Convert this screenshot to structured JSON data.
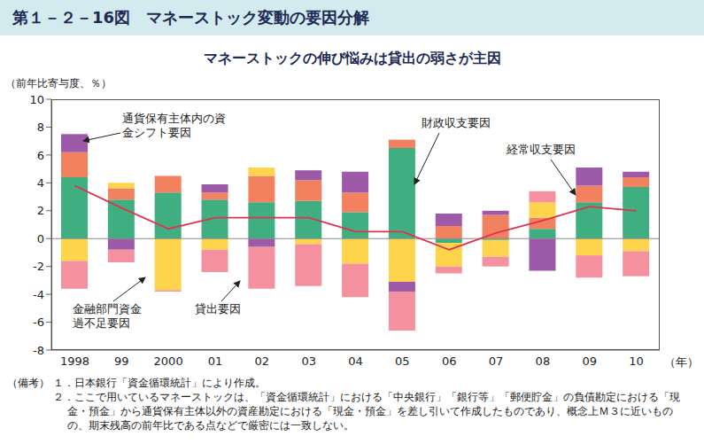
{
  "chart_data": {
    "type": "bar",
    "title": "第１－２－16図　マネーストック変動の要因分解",
    "subtitle": "マネーストックの伸び悩みは貸出の弱さが主因",
    "y_label": "（前年比寄与度、％）",
    "x_label": "（年）",
    "categories": [
      "1998",
      "99",
      "2000",
      "01",
      "02",
      "03",
      "04",
      "05",
      "06",
      "07",
      "08",
      "09",
      "10"
    ],
    "series": [
      {
        "name": "財政収支要因",
        "type": "bar",
        "color": "#3fae80",
        "values": [
          4.4,
          2.8,
          3.3,
          2.8,
          2.6,
          2.7,
          1.9,
          6.5,
          -0.3,
          -0.1,
          0.7,
          2.6,
          3.7
        ]
      },
      {
        "name": "経常収支要因",
        "type": "bar",
        "color": "#f2825f",
        "values": [
          1.8,
          0.8,
          1.2,
          0.5,
          1.9,
          1.5,
          1.4,
          0.6,
          0.9,
          1.7,
          0.8,
          1.2,
          0.7
        ]
      },
      {
        "name": "金融部門資金過不足要因",
        "type": "bar",
        "color": "#ffd44d",
        "values": [
          -1.6,
          0.4,
          -3.7,
          -0.8,
          0.6,
          -0.4,
          -1.8,
          -3.1,
          -1.7,
          -1.2,
          1.1,
          -1.2,
          -0.9
        ]
      },
      {
        "name": "通貨保有主体内の資金シフト要因",
        "type": "bar",
        "color": "#9c5aa8",
        "values": [
          1.3,
          -0.8,
          0,
          0.6,
          -0.6,
          0.7,
          1.5,
          -0.7,
          0.9,
          0.3,
          -2.3,
          1.3,
          0.4
        ]
      },
      {
        "name": "貸出要因",
        "type": "bar",
        "color": "#f5909f",
        "values": [
          -2.0,
          -0.9,
          -0.1,
          -1.6,
          -3.0,
          -3.0,
          -2.4,
          -2.8,
          -0.5,
          -0.7,
          0.8,
          -1.6,
          -1.8
        ]
      },
      {
        "type": "line",
        "color": "#e2314f",
        "values": [
          3.8,
          2.2,
          0.7,
          1.5,
          1.5,
          1.5,
          0.5,
          0.5,
          -0.8,
          0.4,
          1.3,
          2.3,
          2.0
        ]
      }
    ],
    "ylim": [
      -8,
      10
    ],
    "yticks": [
      -8,
      -6,
      -4,
      -2,
      0,
      2,
      4,
      6,
      8,
      10
    ],
    "stacked": true,
    "grid": false,
    "notes_label": "（備考）",
    "notes": [
      "１．日本銀行「資金循環統計」により作成。",
      "２．ここで用いているマネーストックは、「資金循環統計」における「中央銀行」「銀行等」「郵便貯金」の負債勘定における「現金・預金」から通貨保有主体以外の資産勘定における「現金・預金」を差し引いて作成したものであり、概念上Ｍ３に近いものの、期末残高の前年比である点などで厳密には一致しない。"
    ]
  }
}
